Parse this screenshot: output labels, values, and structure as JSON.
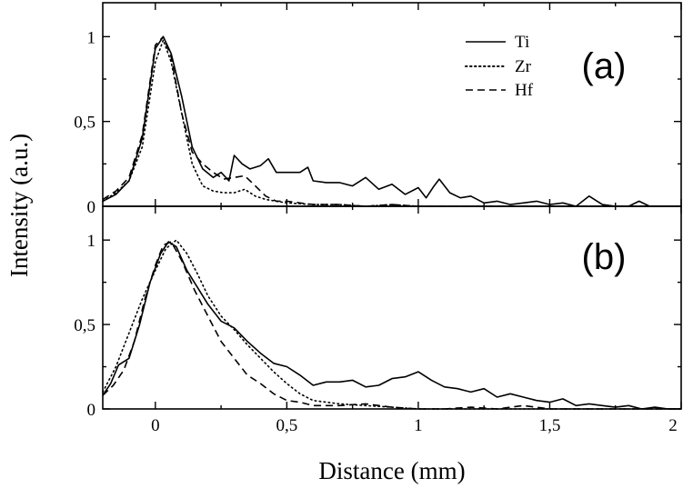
{
  "chart_data": {
    "type": "line",
    "xlabel": "Distance (mm)",
    "ylabel": "Intensity (a.u.)",
    "xlim": [
      -0.2,
      2.0
    ],
    "x_ticks": [
      0,
      0.5,
      1,
      1.5,
      2
    ],
    "x_tick_labels": [
      "0",
      "0,5",
      "1",
      "1,5",
      "2"
    ],
    "ylim": [
      0,
      1.2
    ],
    "y_ticks": [
      0,
      0.5,
      1
    ],
    "y_tick_labels": [
      "0",
      "0,5",
      "1"
    ],
    "grid": false,
    "legend": {
      "placement": "top-right of panel (a)",
      "entries": [
        {
          "name": "Ti",
          "style": "solid"
        },
        {
          "name": "Zr",
          "style": "dotted"
        },
        {
          "name": "Hf",
          "style": "dashed"
        }
      ]
    },
    "panels": [
      {
        "label": "(a)",
        "series": [
          {
            "name": "Ti",
            "style": "solid",
            "points": [
              [
                -0.2,
                0.03
              ],
              [
                -0.15,
                0.07
              ],
              [
                -0.1,
                0.15
              ],
              [
                -0.05,
                0.4
              ],
              [
                0,
                0.93
              ],
              [
                0.03,
                1.0
              ],
              [
                0.06,
                0.9
              ],
              [
                0.1,
                0.65
              ],
              [
                0.14,
                0.35
              ],
              [
                0.18,
                0.22
              ],
              [
                0.22,
                0.17
              ],
              [
                0.25,
                0.2
              ],
              [
                0.28,
                0.15
              ],
              [
                0.3,
                0.3
              ],
              [
                0.33,
                0.25
              ],
              [
                0.36,
                0.22
              ],
              [
                0.4,
                0.24
              ],
              [
                0.43,
                0.28
              ],
              [
                0.46,
                0.2
              ],
              [
                0.5,
                0.2
              ],
              [
                0.55,
                0.2
              ],
              [
                0.58,
                0.23
              ],
              [
                0.6,
                0.15
              ],
              [
                0.65,
                0.14
              ],
              [
                0.7,
                0.14
              ],
              [
                0.75,
                0.12
              ],
              [
                0.8,
                0.17
              ],
              [
                0.85,
                0.1
              ],
              [
                0.9,
                0.13
              ],
              [
                0.95,
                0.07
              ],
              [
                1.0,
                0.11
              ],
              [
                1.03,
                0.05
              ],
              [
                1.06,
                0.12
              ],
              [
                1.08,
                0.16
              ],
              [
                1.12,
                0.08
              ],
              [
                1.16,
                0.05
              ],
              [
                1.2,
                0.06
              ],
              [
                1.25,
                0.02
              ],
              [
                1.3,
                0.03
              ],
              [
                1.35,
                0.01
              ],
              [
                1.4,
                0.02
              ],
              [
                1.45,
                0.03
              ],
              [
                1.5,
                0.01
              ],
              [
                1.55,
                0.02
              ],
              [
                1.6,
                0.0
              ],
              [
                1.65,
                0.06
              ],
              [
                1.7,
                0.01
              ],
              [
                1.75,
                0.0
              ],
              [
                1.8,
                0.0
              ],
              [
                1.84,
                0.03
              ],
              [
                1.88,
                0.0
              ],
              [
                1.95,
                0.0
              ],
              [
                2.0,
                0.0
              ]
            ]
          },
          {
            "name": "Zr",
            "style": "dotted",
            "points": [
              [
                -0.2,
                0.03
              ],
              [
                -0.15,
                0.08
              ],
              [
                -0.1,
                0.15
              ],
              [
                -0.05,
                0.35
              ],
              [
                0,
                0.85
              ],
              [
                0.03,
                0.98
              ],
              [
                0.06,
                0.85
              ],
              [
                0.1,
                0.55
              ],
              [
                0.14,
                0.25
              ],
              [
                0.18,
                0.12
              ],
              [
                0.22,
                0.09
              ],
              [
                0.26,
                0.08
              ],
              [
                0.3,
                0.08
              ],
              [
                0.34,
                0.1
              ],
              [
                0.38,
                0.06
              ],
              [
                0.42,
                0.04
              ],
              [
                0.46,
                0.03
              ],
              [
                0.5,
                0.02
              ],
              [
                0.6,
                0.01
              ],
              [
                0.7,
                0.01
              ],
              [
                0.8,
                0.0
              ],
              [
                0.9,
                0.01
              ],
              [
                1.0,
                0.0
              ],
              [
                1.2,
                0.0
              ],
              [
                1.4,
                0.0
              ],
              [
                1.6,
                0.0
              ],
              [
                1.8,
                0.0
              ],
              [
                2.0,
                0.0
              ]
            ]
          },
          {
            "name": "Hf",
            "style": "dashed",
            "points": [
              [
                -0.2,
                0.04
              ],
              [
                -0.15,
                0.09
              ],
              [
                -0.1,
                0.17
              ],
              [
                -0.05,
                0.42
              ],
              [
                0,
                0.95
              ],
              [
                0.03,
                1.0
              ],
              [
                0.06,
                0.88
              ],
              [
                0.1,
                0.55
              ],
              [
                0.14,
                0.32
              ],
              [
                0.18,
                0.25
              ],
              [
                0.22,
                0.2
              ],
              [
                0.26,
                0.16
              ],
              [
                0.3,
                0.17
              ],
              [
                0.34,
                0.18
              ],
              [
                0.38,
                0.12
              ],
              [
                0.42,
                0.06
              ],
              [
                0.46,
                0.03
              ],
              [
                0.5,
                0.03
              ],
              [
                0.55,
                0.02
              ],
              [
                0.6,
                0.01
              ],
              [
                0.7,
                0.01
              ],
              [
                0.8,
                0.0
              ],
              [
                0.9,
                0.01
              ],
              [
                1.0,
                0.0
              ],
              [
                1.2,
                0.0
              ],
              [
                1.4,
                0.0
              ],
              [
                1.6,
                0.0
              ],
              [
                1.8,
                0.0
              ],
              [
                2.0,
                0.0
              ]
            ]
          }
        ]
      },
      {
        "label": "(b)",
        "series": [
          {
            "name": "Ti",
            "style": "solid",
            "points": [
              [
                -0.2,
                0.08
              ],
              [
                -0.17,
                0.15
              ],
              [
                -0.14,
                0.26
              ],
              [
                -0.1,
                0.3
              ],
              [
                -0.06,
                0.5
              ],
              [
                -0.02,
                0.75
              ],
              [
                0.02,
                0.92
              ],
              [
                0.05,
                0.99
              ],
              [
                0.08,
                0.96
              ],
              [
                0.12,
                0.82
              ],
              [
                0.16,
                0.72
              ],
              [
                0.2,
                0.62
              ],
              [
                0.25,
                0.52
              ],
              [
                0.3,
                0.48
              ],
              [
                0.35,
                0.4
              ],
              [
                0.4,
                0.33
              ],
              [
                0.45,
                0.27
              ],
              [
                0.5,
                0.25
              ],
              [
                0.55,
                0.2
              ],
              [
                0.6,
                0.14
              ],
              [
                0.65,
                0.16
              ],
              [
                0.7,
                0.16
              ],
              [
                0.75,
                0.17
              ],
              [
                0.8,
                0.13
              ],
              [
                0.85,
                0.14
              ],
              [
                0.9,
                0.18
              ],
              [
                0.95,
                0.19
              ],
              [
                1.0,
                0.22
              ],
              [
                1.05,
                0.17
              ],
              [
                1.1,
                0.13
              ],
              [
                1.15,
                0.12
              ],
              [
                1.2,
                0.1
              ],
              [
                1.25,
                0.12
              ],
              [
                1.3,
                0.07
              ],
              [
                1.35,
                0.09
              ],
              [
                1.4,
                0.07
              ],
              [
                1.45,
                0.05
              ],
              [
                1.5,
                0.04
              ],
              [
                1.55,
                0.06
              ],
              [
                1.6,
                0.02
              ],
              [
                1.65,
                0.03
              ],
              [
                1.7,
                0.02
              ],
              [
                1.75,
                0.01
              ],
              [
                1.8,
                0.02
              ],
              [
                1.85,
                0.0
              ],
              [
                1.9,
                0.01
              ],
              [
                1.95,
                0.0
              ],
              [
                2.0,
                0.0
              ]
            ]
          },
          {
            "name": "Zr",
            "style": "dotted",
            "points": [
              [
                -0.2,
                0.1
              ],
              [
                -0.15,
                0.25
              ],
              [
                -0.1,
                0.45
              ],
              [
                -0.05,
                0.65
              ],
              [
                0,
                0.82
              ],
              [
                0.04,
                0.95
              ],
              [
                0.08,
                1.0
              ],
              [
                0.12,
                0.92
              ],
              [
                0.16,
                0.8
              ],
              [
                0.2,
                0.67
              ],
              [
                0.25,
                0.55
              ],
              [
                0.3,
                0.47
              ],
              [
                0.35,
                0.38
              ],
              [
                0.4,
                0.3
              ],
              [
                0.45,
                0.22
              ],
              [
                0.5,
                0.15
              ],
              [
                0.55,
                0.09
              ],
              [
                0.6,
                0.05
              ],
              [
                0.7,
                0.03
              ],
              [
                0.8,
                0.02
              ],
              [
                0.9,
                0.01
              ],
              [
                1.0,
                0.0
              ],
              [
                1.2,
                0.0
              ],
              [
                1.4,
                0.0
              ],
              [
                1.6,
                0.0
              ],
              [
                1.8,
                0.0
              ],
              [
                2.0,
                0.0
              ]
            ]
          },
          {
            "name": "Hf",
            "style": "dashed",
            "points": [
              [
                -0.2,
                0.08
              ],
              [
                -0.16,
                0.14
              ],
              [
                -0.12,
                0.23
              ],
              [
                -0.08,
                0.4
              ],
              [
                -0.04,
                0.65
              ],
              [
                0,
                0.85
              ],
              [
                0.03,
                0.97
              ],
              [
                0.06,
                0.99
              ],
              [
                0.1,
                0.88
              ],
              [
                0.15,
                0.7
              ],
              [
                0.2,
                0.55
              ],
              [
                0.25,
                0.4
              ],
              [
                0.3,
                0.3
              ],
              [
                0.35,
                0.2
              ],
              [
                0.4,
                0.15
              ],
              [
                0.45,
                0.09
              ],
              [
                0.5,
                0.05
              ],
              [
                0.55,
                0.04
              ],
              [
                0.6,
                0.02
              ],
              [
                0.7,
                0.02
              ],
              [
                0.8,
                0.03
              ],
              [
                0.9,
                0.01
              ],
              [
                1.0,
                0.0
              ],
              [
                1.1,
                0.0
              ],
              [
                1.2,
                0.01
              ],
              [
                1.3,
                0.0
              ],
              [
                1.4,
                0.02
              ],
              [
                1.5,
                0.0
              ],
              [
                1.6,
                0.0
              ],
              [
                1.8,
                0.0
              ],
              [
                2.0,
                0.0
              ]
            ]
          }
        ]
      }
    ]
  }
}
